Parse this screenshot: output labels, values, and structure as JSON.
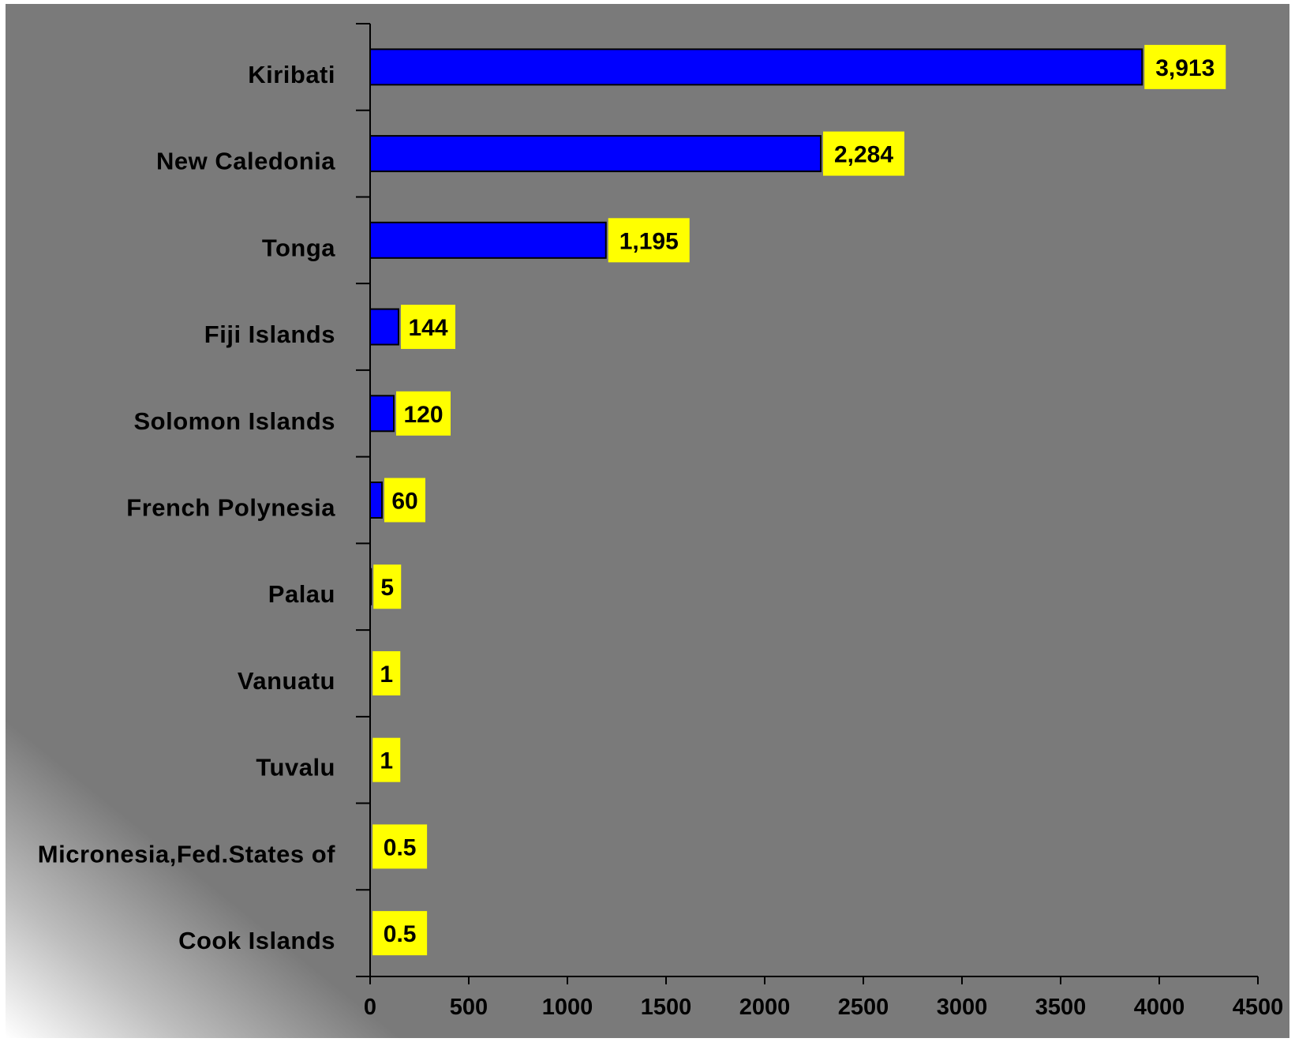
{
  "chart_data": {
    "type": "bar",
    "orientation": "horizontal",
    "title": "",
    "xlabel": "",
    "ylabel": "",
    "categories": [
      "Kiribati",
      "New Caledonia",
      "Tonga",
      "Fiji Islands",
      "Solomon Islands",
      "French Polynesia",
      "Palau",
      "Vanuatu",
      "Tuvalu",
      "Micronesia,Fed.States of",
      "Cook Islands"
    ],
    "values": [
      3913,
      2284,
      1195,
      144,
      120,
      60,
      5,
      1,
      1,
      0.5,
      0.5
    ],
    "data_labels": [
      "3,913",
      "2,284",
      "1,195",
      "144",
      "120",
      "60",
      "5",
      "1",
      "1",
      "0.5",
      "0.5"
    ],
    "xlim": [
      0,
      4500
    ],
    "xticks": [
      0,
      500,
      1000,
      1500,
      2000,
      2500,
      3000,
      3500,
      4000,
      4500
    ],
    "xtick_labels": [
      "0",
      "500",
      "1000",
      "1500",
      "2000",
      "2500",
      "3000",
      "3500",
      "4000",
      "4500"
    ],
    "grid": false,
    "legend": "none",
    "colors": {
      "plot_background": "#7a7a7a",
      "bar_fill": "#0000ff",
      "bar_stroke": "#000000",
      "data_label_background": "#ffff00",
      "axis": "#000000"
    }
  }
}
